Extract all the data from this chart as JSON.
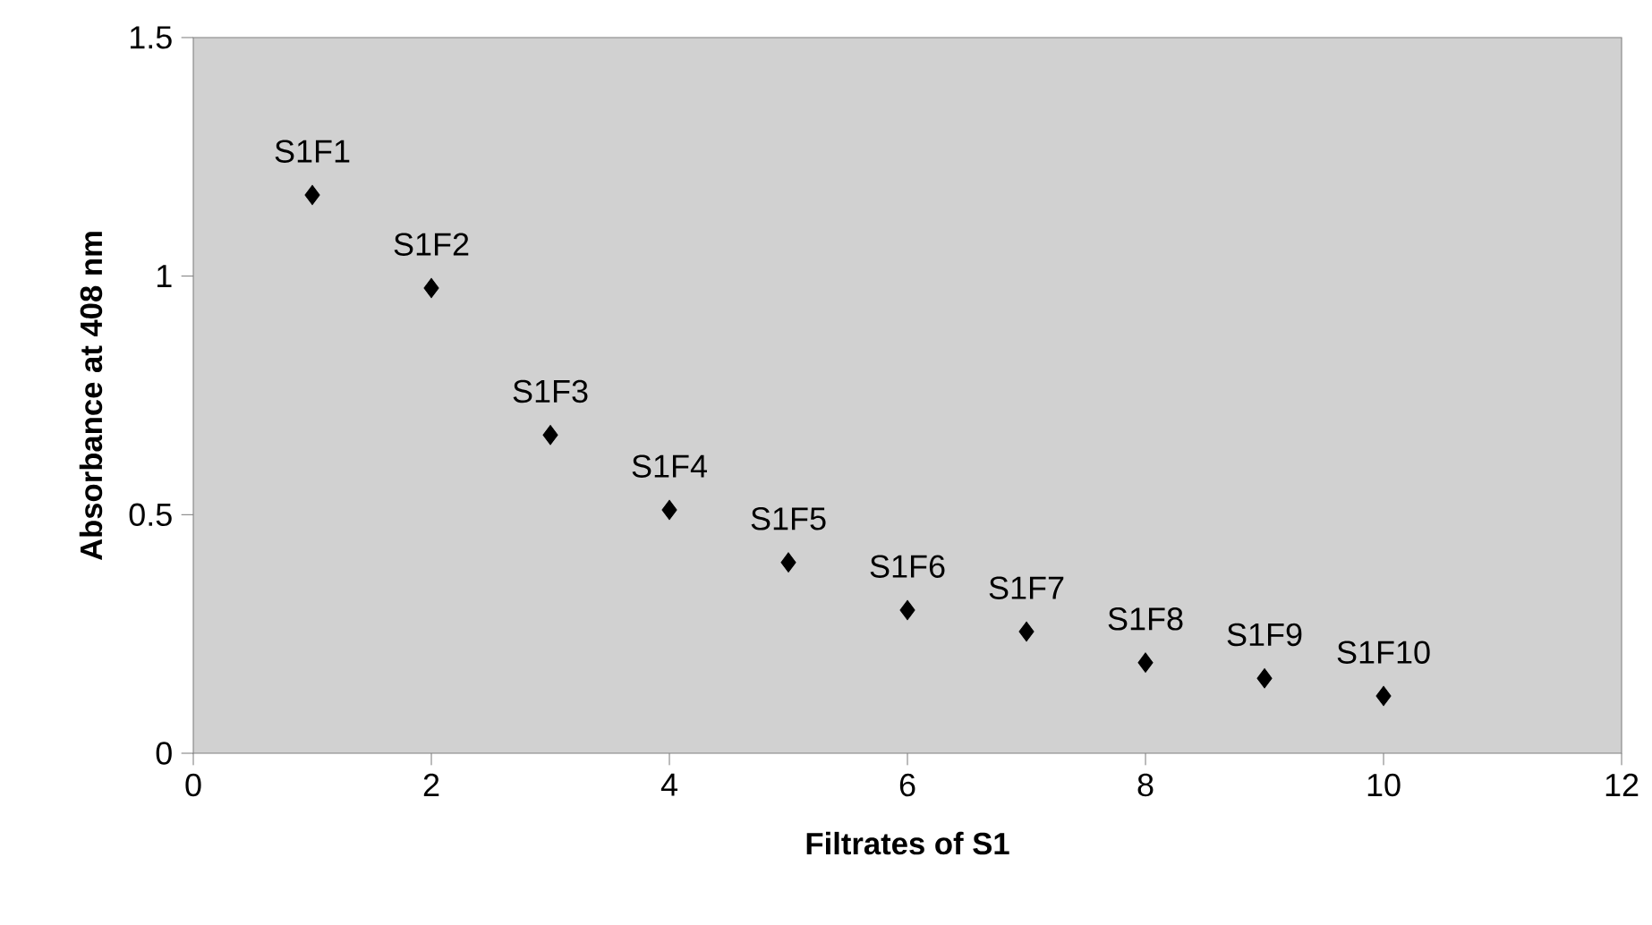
{
  "chart_data": {
    "type": "scatter",
    "xlabel": "Filtrates of S1",
    "ylabel": "Absorbance at 408 nm",
    "x": [
      1,
      2,
      3,
      4,
      5,
      6,
      7,
      8,
      9,
      10
    ],
    "values": [
      1.17,
      0.975,
      0.667,
      0.51,
      0.4,
      0.3,
      0.255,
      0.19,
      0.157,
      0.12
    ],
    "color": "#000000",
    "marker": "diamond",
    "xlim": [
      0,
      12
    ],
    "ylim": [
      0,
      1.5
    ],
    "xticks": [
      0,
      2,
      4,
      6,
      8,
      10,
      12
    ],
    "yticks": [
      0,
      0.5,
      1,
      1.5
    ],
    "annotations": [
      {
        "text": "S1F1",
        "x": 1,
        "y": 1.17
      },
      {
        "text": "S1F2",
        "x": 2,
        "y": 0.975
      },
      {
        "text": "S1F3",
        "x": 3,
        "y": 0.667
      },
      {
        "text": "S1F4",
        "x": 4,
        "y": 0.51
      },
      {
        "text": "S1F5",
        "x": 5,
        "y": 0.4
      },
      {
        "text": "S1F6",
        "x": 6,
        "y": 0.3
      },
      {
        "text": "S1F7",
        "x": 7,
        "y": 0.255
      },
      {
        "text": "S1F8",
        "x": 8,
        "y": 0.19
      },
      {
        "text": "S1F9",
        "x": 9,
        "y": 0.157
      },
      {
        "text": "S1F10",
        "x": 10,
        "y": 0.12
      }
    ]
  }
}
